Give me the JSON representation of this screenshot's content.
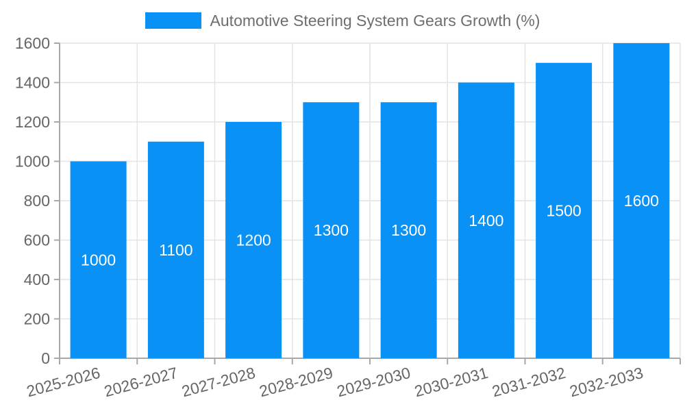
{
  "legend": {
    "label": "Automotive Steering System Gears Growth (%)"
  },
  "colors": {
    "bar": "#0991f5",
    "grid": "#e4e4e4",
    "axis": "#a8a8a8",
    "tick_text": "#666666",
    "legend_text": "#6e6e6e",
    "value_label": "#ffffff",
    "background": "#ffffff"
  },
  "chart_data": {
    "type": "bar",
    "title": "Automotive Steering System Gears Growth (%)",
    "categories": [
      "2025-2026",
      "2026-2027",
      "2027-2028",
      "2028-2029",
      "2029-2030",
      "2030-2031",
      "2031-2032",
      "2032-2033"
    ],
    "values": [
      1000,
      1100,
      1200,
      1300,
      1300,
      1400,
      1500,
      1600
    ],
    "series": [
      {
        "name": "Automotive Steering System Gears Growth (%)",
        "values": [
          1000,
          1100,
          1200,
          1300,
          1300,
          1400,
          1500,
          1600
        ]
      }
    ],
    "value_labels": [
      "1000",
      "1100",
      "1200",
      "1300",
      "1300",
      "1400",
      "1500",
      "1600"
    ],
    "xlabel": "",
    "ylabel": "",
    "ylim": [
      0,
      1600
    ],
    "y_ticks": [
      0,
      200,
      400,
      600,
      800,
      1000,
      1200,
      1400,
      1600
    ],
    "grid": true,
    "legend_position": "top",
    "bar_labels_inside": true,
    "x_label_rotation_deg": -15
  }
}
